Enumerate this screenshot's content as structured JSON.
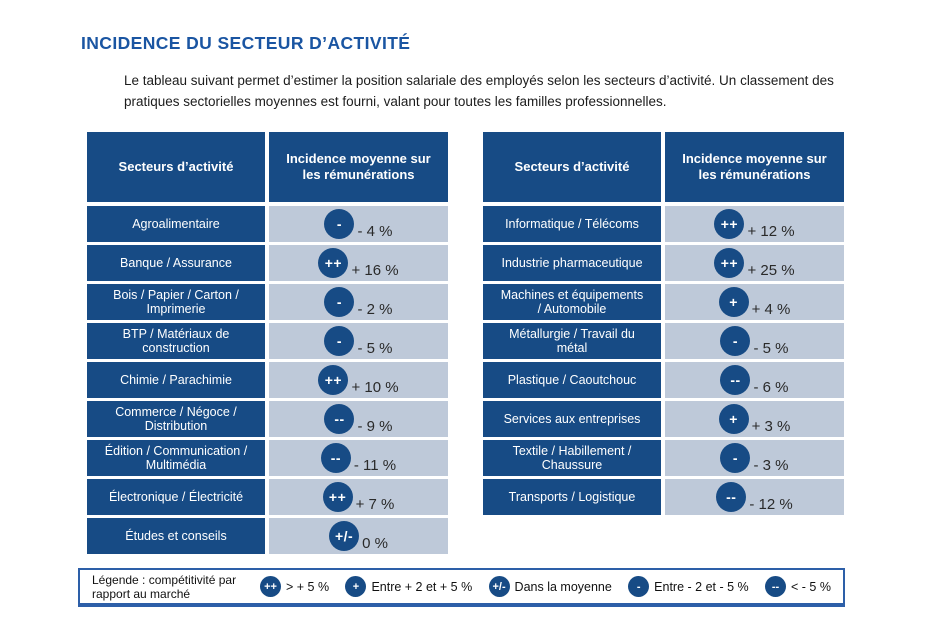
{
  "header": {
    "title": "INCIDENCE DU SECTEUR D’ACTIVITÉ",
    "intro": "Le tableau suivant permet d’estimer la position salariale des employés selon les secteurs d’activité. Un classement des pratiques sectorielles moyennes est fourni, valant pour toutes les familles professionnelles."
  },
  "colors": {
    "dark_blue": "#174b85",
    "light_cell": "#bec9d9",
    "title_blue": "#1a55a2",
    "legend_border": "#2d5fa8"
  },
  "tables": [
    {
      "headers": {
        "sector": "Secteurs d’activité",
        "incidence": "Incidence moyenne sur les rémunérations"
      },
      "rows": [
        {
          "sector": "Agroalimentaire",
          "badge": "-",
          "value": "- 4 %"
        },
        {
          "sector": "Banque / Assurance",
          "badge": "++",
          "value": "+ 16 %"
        },
        {
          "sector": "Bois / Papier / Carton / Imprimerie",
          "badge": "-",
          "value": "- 2 %"
        },
        {
          "sector": "BTP / Matériaux de construction",
          "badge": "-",
          "value": "- 5 %"
        },
        {
          "sector": "Chimie / Parachimie",
          "badge": "++",
          "value": "+ 10 %"
        },
        {
          "sector": "Commerce / Négoce / Distribution",
          "badge": "--",
          "value": "- 9 %"
        },
        {
          "sector": "Édition / Communication / Multimédia",
          "badge": "--",
          "value": "- 11 %"
        },
        {
          "sector": "Électronique / Électricité",
          "badge": "++",
          "value": "+ 7 %"
        },
        {
          "sector": "Études et conseils",
          "badge": "+/-",
          "value": "0 %"
        }
      ]
    },
    {
      "headers": {
        "sector": "Secteurs d’activité",
        "incidence": "Incidence moyenne sur les rémunérations"
      },
      "rows": [
        {
          "sector": "Informatique / Télécoms",
          "badge": "++",
          "value": "+ 12 %"
        },
        {
          "sector": "Industrie pharmaceutique",
          "badge": "++",
          "value": "+ 25 %"
        },
        {
          "sector": "Machines et équipements / Automobile",
          "badge": "+",
          "value": "+ 4 %"
        },
        {
          "sector": "Métallurgie / Travail du métal",
          "badge": "-",
          "value": "- 5 %"
        },
        {
          "sector": "Plastique / Caoutchouc",
          "badge": "--",
          "value": "- 6 %"
        },
        {
          "sector": "Services aux entreprises",
          "badge": "+",
          "value": "+ 3 %"
        },
        {
          "sector": "Textile / Habillement / Chaussure",
          "badge": "-",
          "value": "- 3 %"
        },
        {
          "sector": "Transports / Logistique",
          "badge": "--",
          "value": "- 12 %"
        }
      ]
    }
  ],
  "legend": {
    "label": "Légende : compétitivité par rapport au marché",
    "items": [
      {
        "badge": "++",
        "text": "> + 5 %"
      },
      {
        "badge": "+",
        "text": "Entre + 2 et + 5 %"
      },
      {
        "badge": "+/-",
        "text": "Dans la moyenne"
      },
      {
        "badge": "-",
        "text": "Entre - 2 et - 5 %"
      },
      {
        "badge": "--",
        "text": "< - 5 %"
      }
    ]
  }
}
